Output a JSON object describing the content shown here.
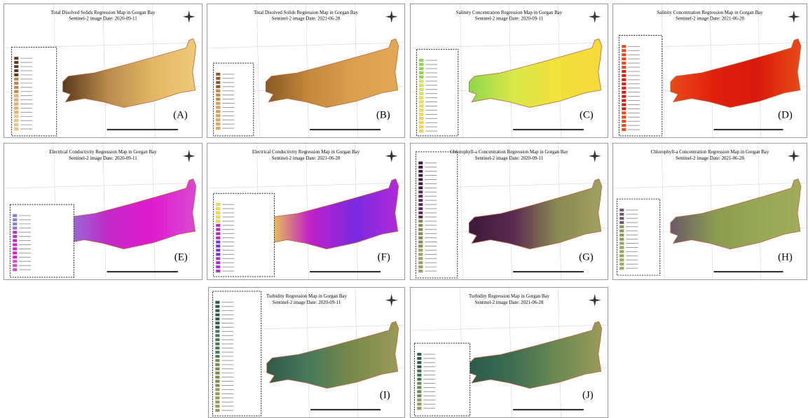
{
  "panels": [
    {
      "title": "Total Disolved Solids Regression Map in Gorgan Bay",
      "subtitle": "Sentinel-2 image Date: 2020-09-11",
      "label": "(A)"
    },
    {
      "title": "Total Disolved Solids Regression Map in Gorgan Bay",
      "subtitle": "Sentinel-2 image Date: 2021-06-28",
      "label": "(B)"
    },
    {
      "title": "Salinity Concentration Regression Map in Gorgan Bay",
      "subtitle": "Sentinel-2 image Date: 2020-09-11",
      "label": "(C)"
    },
    {
      "title": "Salinity Concentration Regression Map in Gorgan Bay",
      "subtitle": "Sentinel-2 image Date: 2021-06-28",
      "label": "(D)"
    },
    {
      "title": "Electrical Conductivity Regression Map in Gorgan Bay",
      "subtitle": "Sentinel-2 image Date: 2020-09-11",
      "label": "(E)"
    },
    {
      "title": "Electrical Conductivity Regression Map in Gorgan Bay",
      "subtitle": "Sentinel-2 image Date: 2021-06-28",
      "label": "(F)"
    },
    {
      "title": "Chlorophyll-a Concentration Regression Map in Gorgan Bay",
      "subtitle": "Sentinel-2 image Date: 2020-09-11",
      "label": "(G)"
    },
    {
      "title": "Chlorophyll-a Concentration Regression Map in Gorgan Bay",
      "subtitle": "Sentinel-2 image Date: 2021-06-28",
      "label": "(H)"
    },
    {
      "title": "Turbidity Regression Map in Gorgan Bay",
      "subtitle": "Sentinel-2 image Date: 2020-09-11",
      "label": "(I)"
    },
    {
      "title": "Turbidity Regression Map in Gorgan Bay",
      "subtitle": "Sentinel-2 image Date: 2021-06-28",
      "label": "(J)"
    }
  ]
}
